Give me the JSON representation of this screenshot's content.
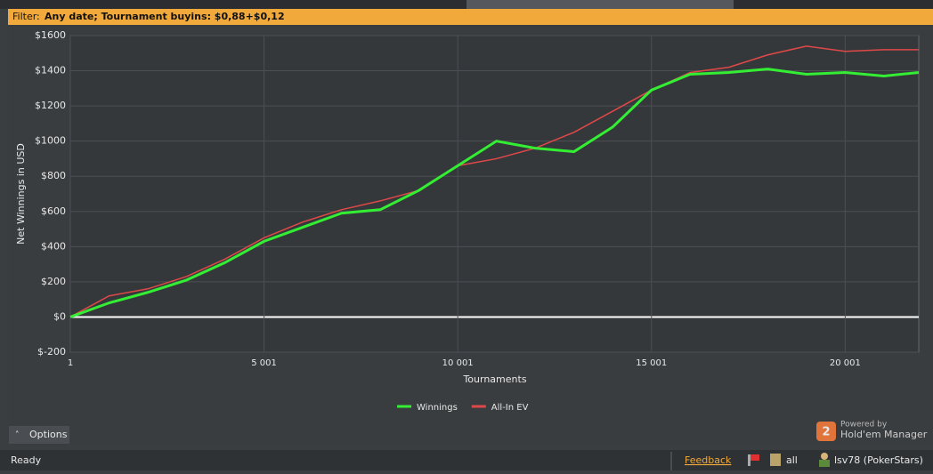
{
  "filter": {
    "label": "Filter:",
    "text": "Any date; Tournament buyins: $0,88+$0,12"
  },
  "chart_data": {
    "type": "line",
    "x_label": "Tournaments",
    "y_label": "Net Winnings in USD",
    "x": [
      1,
      1000,
      2000,
      3000,
      4000,
      5000,
      6000,
      7000,
      8000,
      9000,
      10000,
      11000,
      12000,
      13000,
      14000,
      15000,
      16000,
      17000,
      18000,
      19000,
      20000,
      21000,
      21900
    ],
    "series": [
      {
        "name": "Winnings",
        "color": "#33ee33",
        "values": [
          0,
          80,
          140,
          210,
          310,
          430,
          510,
          590,
          610,
          720,
          860,
          1000,
          960,
          940,
          1080,
          1290,
          1380,
          1390,
          1410,
          1380,
          1390,
          1370,
          1390
        ]
      },
      {
        "name": "All-In EV",
        "color": "#e04848",
        "values": [
          0,
          120,
          160,
          230,
          330,
          450,
          540,
          610,
          660,
          720,
          860,
          900,
          960,
          1050,
          1170,
          1290,
          1390,
          1420,
          1490,
          1540,
          1510,
          1520,
          1520
        ]
      }
    ],
    "xlim": [
      1,
      21900
    ],
    "xticks": [
      1,
      {
        "value": 5001,
        "label": "5 001"
      },
      {
        "value": 10001,
        "label": "10 001"
      },
      {
        "value": 15001,
        "label": "15 001"
      },
      {
        "value": 20001,
        "label": "20 001"
      }
    ],
    "ylim": [
      -200,
      1600
    ],
    "yticks": [
      {
        "value": -200,
        "label": "$-200"
      },
      {
        "value": 0,
        "label": "$0"
      },
      {
        "value": 200,
        "label": "$200"
      },
      {
        "value": 400,
        "label": "$400"
      },
      {
        "value": 600,
        "label": "$600"
      },
      {
        "value": 800,
        "label": "$800"
      },
      {
        "value": 1000,
        "label": "$1000"
      },
      {
        "value": 1200,
        "label": "$1200"
      },
      {
        "value": 1400,
        "label": "$1400"
      },
      {
        "value": 1600,
        "label": "$1600"
      }
    ],
    "grid": true
  },
  "options": "Options",
  "logo": {
    "powered": "Powered by",
    "product": "Hold'em Manager",
    "badge": "2"
  },
  "status": {
    "state": "Ready",
    "feedback": "Feedback",
    "filter": "all",
    "player": "lsv78 (PokerStars)"
  }
}
